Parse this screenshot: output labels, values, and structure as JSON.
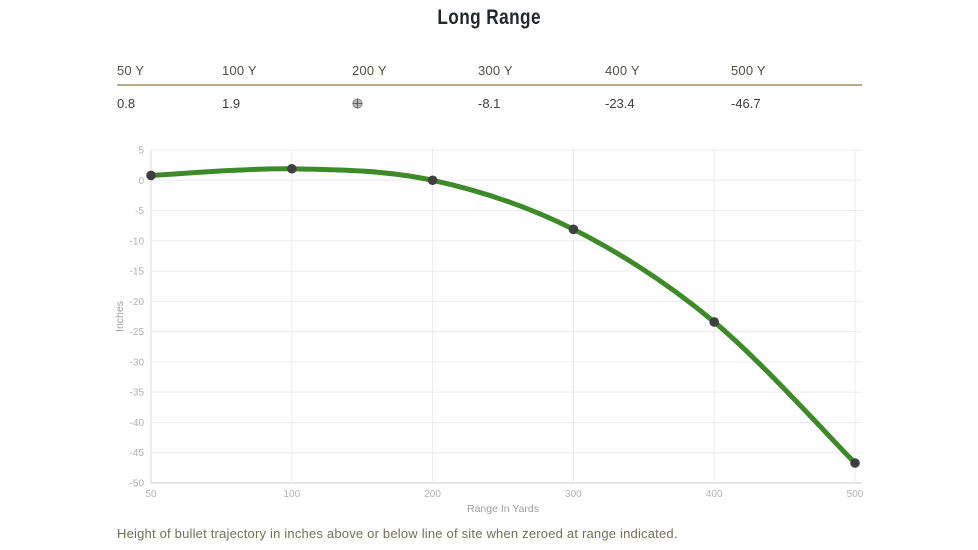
{
  "page": {
    "title": "Long Range",
    "caption": "Height of bullet trajectory in inches above or below line of site when zeroed at range indicated."
  },
  "table": {
    "columns": [
      {
        "header": "50 Y",
        "value": "0.8"
      },
      {
        "header": "100 Y",
        "value": "1.9"
      },
      {
        "header": "200 Y",
        "value": "",
        "icon": "scope-zero-crosshair-icon"
      },
      {
        "header": "300 Y",
        "value": "-8.1"
      },
      {
        "header": "400 Y",
        "value": "-23.4"
      },
      {
        "header": "500 Y",
        "value": "-46.7"
      }
    ]
  },
  "chart_data": {
    "type": "line",
    "title": "",
    "x": [
      50,
      100,
      200,
      300,
      400,
      500
    ],
    "x_tick_labels": [
      "50",
      "100",
      "200",
      "300",
      "400",
      "500"
    ],
    "values": [
      0.8,
      1.9,
      0,
      -8.1,
      -23.4,
      -46.7
    ],
    "xlabel": "Range In Yards",
    "ylabel": "Inches",
    "ylim": [
      -50,
      5
    ],
    "yticks": [
      5,
      0,
      -5,
      -10,
      -15,
      -20,
      -25,
      -30,
      -35,
      -40,
      -45,
      -50
    ],
    "x_spacing": "even",
    "grid": true,
    "legend": "none",
    "line_color": "#3d8b28",
    "marker_color": "#3f3f3f"
  },
  "colors": {
    "title_text": "#23272b",
    "header_rule": "#b3ad8b",
    "table_header_text": "#514f46",
    "table_value_text": "#3d3d3d",
    "caption_text": "#71705e",
    "tick_label_text": "#b1b1b1",
    "axis_label_text": "#9c9c9c",
    "gridline": "#ececec",
    "axis_line": "#c9c9c9"
  }
}
